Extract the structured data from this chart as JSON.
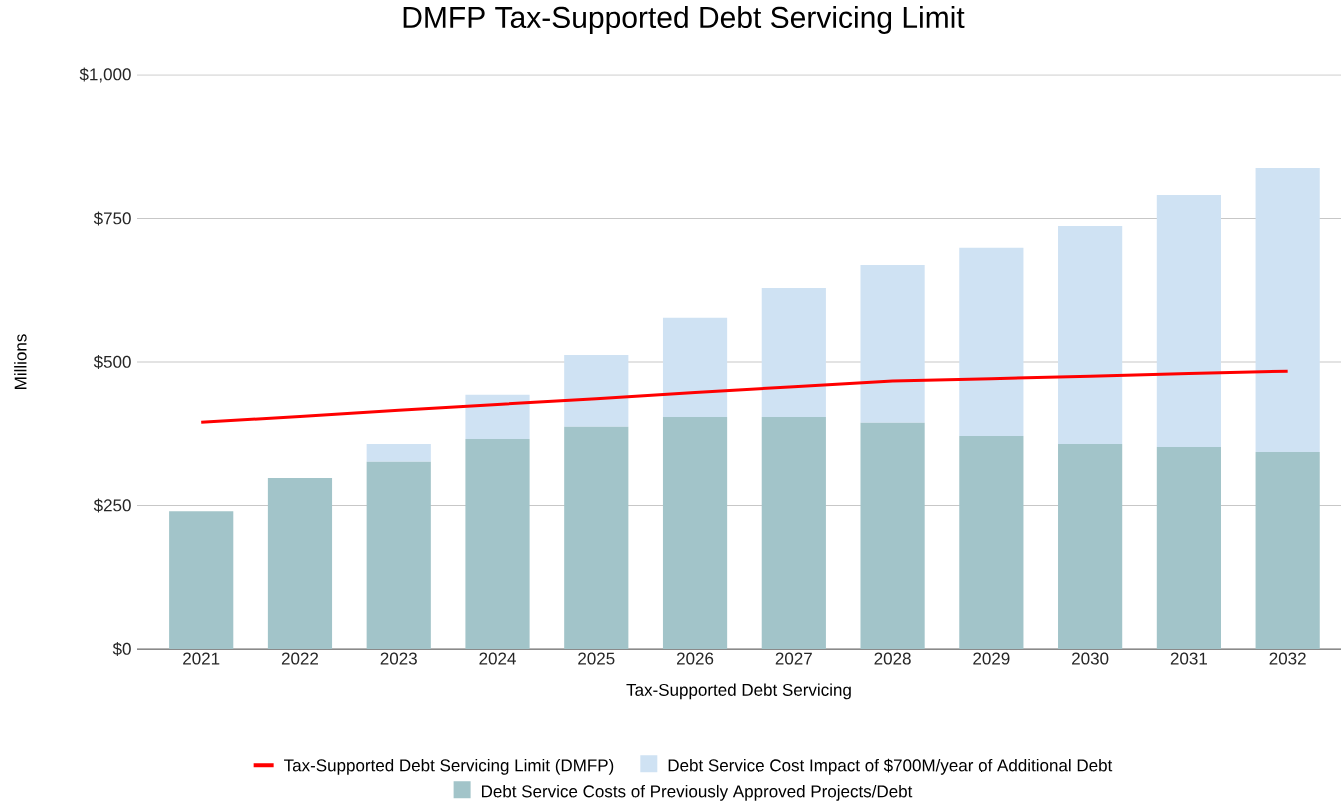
{
  "chart_data": {
    "type": "bar",
    "title": "DMFP Tax-Supported Debt Servicing Limit",
    "xlabel": "Tax-Supported Debt Servicing",
    "ylabel": "Millions",
    "categories": [
      "2021",
      "2022",
      "2023",
      "2024",
      "2025",
      "2026",
      "2027",
      "2028",
      "2029",
      "2030",
      "2031",
      "2032"
    ],
    "stacked": true,
    "grid": "y",
    "legend": "bottom",
    "ylim": [
      0,
      1000
    ],
    "yticks": [
      {
        "value": 0,
        "label": "$0"
      },
      {
        "value": 250,
        "label": "$250"
      },
      {
        "value": 500,
        "label": "$500"
      },
      {
        "value": 750,
        "label": "$750"
      },
      {
        "value": 1000,
        "label": "$1,000"
      }
    ],
    "series": [
      {
        "name": "Tax-Supported Debt Servicing Limit (DMFP)",
        "type": "line",
        "color": "#ff0000",
        "values": [
          395,
          405,
          416,
          426,
          436,
          447,
          457,
          467,
          471,
          475,
          480,
          484
        ]
      },
      {
        "name": "Debt Service Costs of Previously Approved Projects/Debt",
        "color": "#a2c4c9",
        "values": [
          240,
          298,
          326,
          366,
          387,
          404,
          404,
          394,
          371,
          357,
          352,
          343
        ]
      },
      {
        "name": "Debt Service Cost Impact of $700M/year of Additional Debt",
        "color": "#cfe2f3",
        "values": [
          0,
          0,
          31,
          77,
          125,
          173,
          225,
          275,
          328,
          380,
          439,
          495
        ]
      }
    ]
  }
}
